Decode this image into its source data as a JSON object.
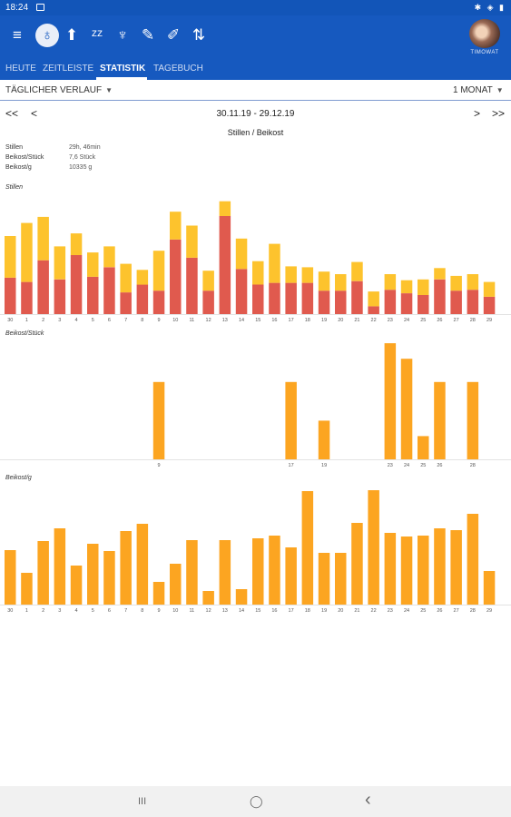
{
  "status": {
    "time": "18:24",
    "icons": "✱ ◈ ▮"
  },
  "toolbar": {
    "menu": "≡",
    "icons": [
      {
        "name": "bottle-feeding-icon",
        "glyph": "♁"
      },
      {
        "name": "diaper-icon",
        "glyph": "⬆"
      },
      {
        "name": "sleep-icon",
        "glyph": "ᶻᶻ"
      },
      {
        "name": "pump-icon",
        "glyph": "♆"
      },
      {
        "name": "growth-ruler-icon",
        "glyph": "✎"
      },
      {
        "name": "medicine-icon",
        "glyph": "✐"
      },
      {
        "name": "activity-icon",
        "glyph": "⇅"
      }
    ],
    "avatar_label": "TIMOWAT"
  },
  "tabs": [
    "HEUTE",
    "ZEITLEISTE",
    "STATISTIK",
    "TAGEBUCH"
  ],
  "filter": {
    "left": "TÄGLICHER VERLAUF",
    "right": "1 MONAT"
  },
  "nav": {
    "first": "<<",
    "prev": "<",
    "next": ">",
    "last": ">>",
    "range": "30.11.19 - 29.12.19"
  },
  "title": "Stillen / Beikost",
  "summary": [
    {
      "label": "Stillen",
      "value": "29h, 46min"
    },
    {
      "label": "Beikost/Stück",
      "value": "7,6 Stück"
    },
    {
      "label": "Beikost/g",
      "value": "10335 g"
    }
  ],
  "chart_data": [
    {
      "type": "bar",
      "title": "Stillen",
      "categories": [
        "30",
        "1",
        "2",
        "3",
        "4",
        "5",
        "6",
        "7",
        "8",
        "9",
        "10",
        "11",
        "12",
        "13",
        "14",
        "15",
        "16",
        "17",
        "18",
        "19",
        "20",
        "21",
        "22",
        "23",
        "24",
        "25",
        "26",
        "27",
        "28",
        "29"
      ],
      "series": [
        {
          "values": [
            42,
            37,
            62,
            40,
            68,
            43,
            54,
            25,
            34,
            27,
            86,
            65,
            27,
            113,
            52,
            34,
            36,
            36,
            36,
            27,
            27,
            38,
            9,
            28,
            24,
            22,
            40,
            27,
            28,
            20
          ],
          "color": "#e05a4e"
        },
        {
          "values": [
            48,
            68,
            50,
            38,
            25,
            28,
            24,
            33,
            17,
            46,
            32,
            37,
            23,
            17,
            35,
            27,
            45,
            19,
            18,
            22,
            19,
            22,
            17,
            18,
            15,
            18,
            13,
            17,
            18,
            17
          ],
          "color": "#fdc32d"
        }
      ],
      "ylim": [
        0,
        136
      ]
    },
    {
      "type": "bar",
      "title": "Beikost/Stück",
      "categories": [
        "30",
        "1",
        "2",
        "3",
        "4",
        "5",
        "6",
        "7",
        "8",
        "9",
        "10",
        "11",
        "12",
        "13",
        "14",
        "15",
        "16",
        "17",
        "18",
        "19",
        "20",
        "21",
        "22",
        "23",
        "24",
        "25",
        "26",
        "27",
        "28",
        "29"
      ],
      "tick_labels": [
        "9",
        "17",
        "19",
        "23",
        "24",
        "25",
        "26",
        "28"
      ],
      "values": [
        0,
        0,
        0,
        0,
        0,
        0,
        0,
        0,
        0,
        2,
        0,
        0,
        0,
        0,
        0,
        0,
        0,
        2,
        0,
        1,
        0,
        0,
        0,
        3,
        2.6,
        0.6,
        2,
        0,
        2,
        0
      ],
      "color": "#fca521",
      "ylim": [
        0,
        3.05
      ]
    },
    {
      "type": "bar",
      "title": "Beikost/g",
      "categories": [
        "30",
        "1",
        "2",
        "3",
        "4",
        "5",
        "6",
        "7",
        "8",
        "9",
        "10",
        "11",
        "12",
        "13",
        "14",
        "15",
        "16",
        "17",
        "18",
        "19",
        "20",
        "21",
        "22",
        "23",
        "24",
        "25",
        "26",
        "27",
        "28",
        "29"
      ],
      "values": [
        60,
        35,
        70,
        84,
        43,
        67,
        59,
        81,
        89,
        25,
        45,
        71,
        15,
        71,
        17,
        73,
        76,
        63,
        125,
        57,
        57,
        90,
        126,
        79,
        75,
        76,
        84,
        82,
        100,
        37
      ],
      "color": "#fca521",
      "ylim": [
        0,
        130
      ]
    }
  ],
  "sysnav": {
    "recents": "III",
    "home": "◯",
    "back": "‹"
  }
}
